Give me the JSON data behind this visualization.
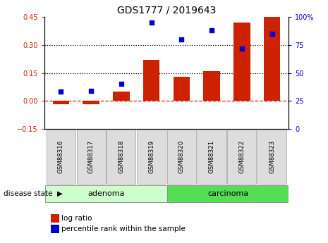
{
  "title": "GDS1777 / 2019643",
  "samples": [
    "GSM88316",
    "GSM88317",
    "GSM88318",
    "GSM88319",
    "GSM88320",
    "GSM88321",
    "GSM88322",
    "GSM88323"
  ],
  "log_ratio": [
    -0.02,
    -0.02,
    0.05,
    0.22,
    0.13,
    0.16,
    0.42,
    0.45
  ],
  "percentile_rank": [
    33,
    34,
    40,
    95,
    80,
    88,
    72,
    85
  ],
  "ylim_left": [
    -0.15,
    0.45
  ],
  "ylim_right": [
    0,
    100
  ],
  "yticks_left": [
    -0.15,
    0.0,
    0.15,
    0.3,
    0.45
  ],
  "yticks_right": [
    0,
    25,
    50,
    75,
    100
  ],
  "hlines": [
    0.15,
    0.3
  ],
  "bar_color": "#cc2200",
  "dot_color": "#0000cc",
  "adenoma_color": "#ccffcc",
  "carcinoma_color": "#55dd55",
  "label_box_color": "#dddddd",
  "legend_labels": [
    "log ratio",
    "percentile rank within the sample"
  ],
  "disease_label": "disease state",
  "adenoma_label": "adenoma",
  "carcinoma_label": "carcinoma",
  "title_fontsize": 10,
  "tick_fontsize": 7,
  "legend_fontsize": 7.5
}
